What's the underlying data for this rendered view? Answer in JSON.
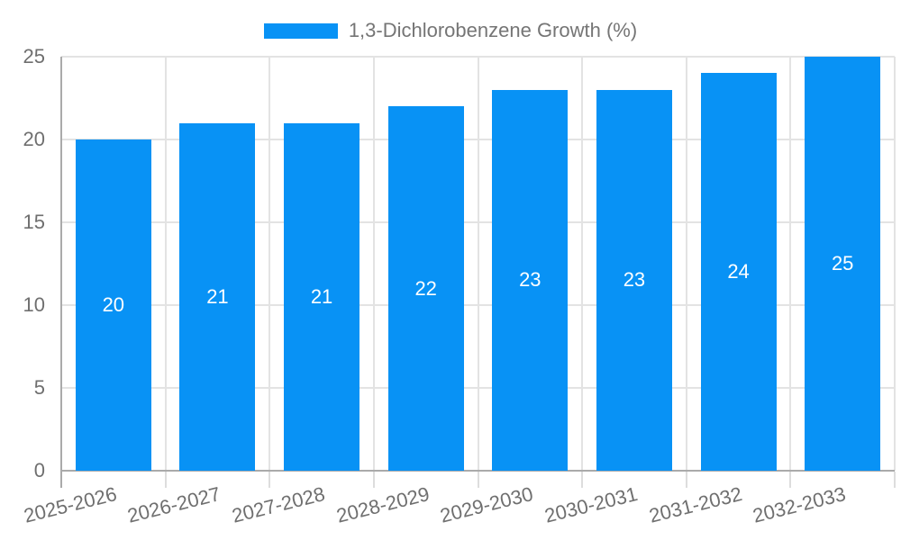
{
  "legend": {
    "label": "1,3-Dichlorobenzene Growth (%)"
  },
  "colors": {
    "bar": "#0892f5",
    "bar_label": "#ffffff",
    "axis_text": "#6f6f6f",
    "legend_text": "#757575",
    "grid": "#e3e3e3",
    "axis_line": "#aaaaaa",
    "tick": "#dddddd",
    "background": "#ffffff"
  },
  "chart_data": {
    "type": "bar",
    "title": "",
    "series_name": "1,3-Dichlorobenzene Growth (%)",
    "categories": [
      "2025-2026",
      "2026-2027",
      "2027-2028",
      "2028-2029",
      "2029-2030",
      "2030-2031",
      "2031-2032",
      "2032-2033"
    ],
    "values": [
      20,
      21,
      21,
      22,
      23,
      23,
      24,
      25
    ],
    "bar_labels": [
      "20",
      "21",
      "21",
      "22",
      "23",
      "23",
      "24",
      "25"
    ],
    "xlabel": "",
    "ylabel": "",
    "ylim": [
      0,
      25
    ],
    "yticks": [
      0,
      5,
      10,
      15,
      20,
      25
    ],
    "grid": true,
    "legend_position": "top-center",
    "x_tick_rotation_deg": -14
  }
}
